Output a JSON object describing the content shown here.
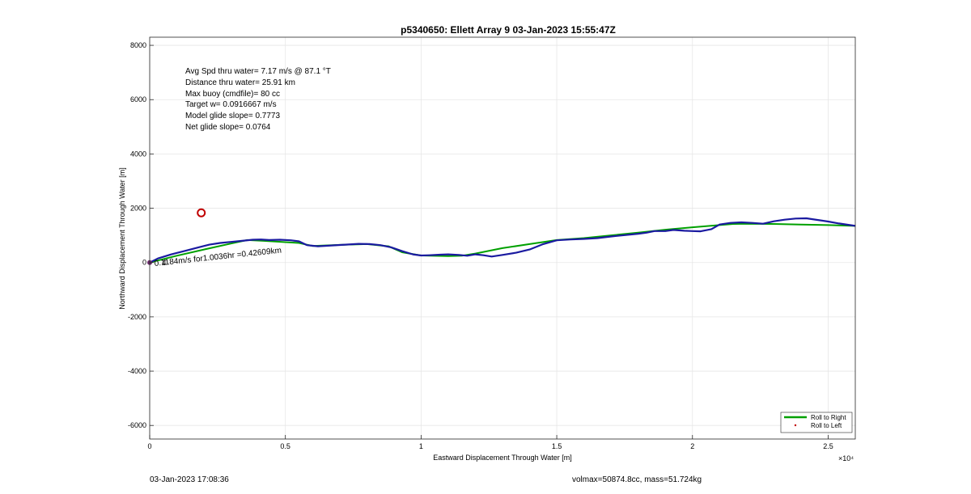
{
  "chart_data": {
    "type": "line",
    "title": "p5340650: Ellett Array 9 03-Jan-2023 15:55:47Z",
    "xlabel": "Eastward Displacement Through Water [m]",
    "ylabel": "Northward Displacement Through Water [m]",
    "x_exponent_label": "×10⁴",
    "xlim": [
      0,
      26000
    ],
    "ylim": [
      -6500,
      8300
    ],
    "grid": true,
    "legend_position": "bottom-right",
    "x_ticks": [
      0,
      5000,
      10000,
      15000,
      20000,
      25000
    ],
    "x_tick_labels": [
      "0",
      "0.5",
      "1",
      "1.5",
      "2",
      "2.5"
    ],
    "y_ticks": [
      -6000,
      -4000,
      -2000,
      0,
      2000,
      4000,
      6000,
      8000
    ],
    "y_tick_labels": [
      "-6000",
      "-4000",
      "-2000",
      "0",
      "2000",
      "4000",
      "6000",
      "8000"
    ],
    "annotations": [
      "Avg Spd thru water=  7.17 m/s @  87.1 °T",
      "Distance thru water= 25.91 km",
      "Max buoy (cmdfile)= 80 cc",
      "Target w= 0.0916667 m/s",
      "Model glide slope= 0.7773",
      "Net glide slope= 0.0764"
    ],
    "current_label": "0.1184m/s for1.0036hr =0.42609km",
    "start_label": "4",
    "marker_circle": {
      "x": 1900,
      "y": 1830,
      "color": "#c00000"
    },
    "series": [
      {
        "name": "Roll to Right",
        "color": "#00a000",
        "x": [
          0,
          1000,
          2000,
          3000,
          3600,
          4200,
          5500,
          6000,
          7000,
          8000,
          8800,
          9300,
          10000,
          11000,
          11500,
          12000,
          13000,
          14000,
          15000,
          16000,
          17000,
          18000,
          19000,
          20000,
          21000,
          21500,
          22000,
          23000,
          24000,
          25000,
          26000
        ],
        "y": [
          0,
          250,
          480,
          700,
          830,
          800,
          720,
          610,
          650,
          680,
          600,
          380,
          260,
          240,
          250,
          330,
          530,
          680,
          830,
          900,
          1000,
          1100,
          1210,
          1300,
          1380,
          1420,
          1430,
          1420,
          1400,
          1380,
          1350
        ]
      },
      {
        "name": "Roll to Left",
        "color": "#c00000",
        "x": [],
        "y": []
      },
      {
        "name": "",
        "color": "#1a1aa0",
        "x": [
          0,
          300,
          800,
          1300,
          1800,
          2200,
          2600,
          3000,
          3400,
          3800,
          4100,
          4400,
          4800,
          5200,
          5500,
          5800,
          6200,
          6700,
          7200,
          7700,
          8100,
          8500,
          8900,
          9300,
          9700,
          10000,
          10300,
          10700,
          11000,
          11400,
          11700,
          12000,
          12300,
          12600,
          13000,
          13500,
          14000,
          14500,
          15000,
          15500,
          16000,
          16500,
          17000,
          17500,
          18000,
          18300,
          18600,
          19000,
          19300,
          19700,
          20000,
          20300,
          20700,
          21000,
          21400,
          21800,
          22200,
          22600,
          23000,
          23400,
          23800,
          24200,
          24600,
          25000,
          25400,
          26000
        ],
        "y": [
          0,
          150,
          300,
          430,
          560,
          660,
          720,
          760,
          800,
          840,
          850,
          830,
          840,
          820,
          780,
          640,
          600,
          630,
          660,
          690,
          680,
          640,
          560,
          420,
          300,
          260,
          270,
          290,
          300,
          280,
          250,
          300,
          270,
          220,
          280,
          360,
          480,
          680,
          820,
          850,
          870,
          900,
          960,
          1010,
          1060,
          1100,
          1160,
          1160,
          1200,
          1170,
          1160,
          1150,
          1230,
          1400,
          1460,
          1480,
          1460,
          1430,
          1520,
          1580,
          1620,
          1630,
          1570,
          1510,
          1440,
          1350
        ]
      }
    ]
  },
  "footer": {
    "left": "03-Jan-2023 17:08:36",
    "right": "volmax=50874.8cc, mass=51.724kg"
  }
}
